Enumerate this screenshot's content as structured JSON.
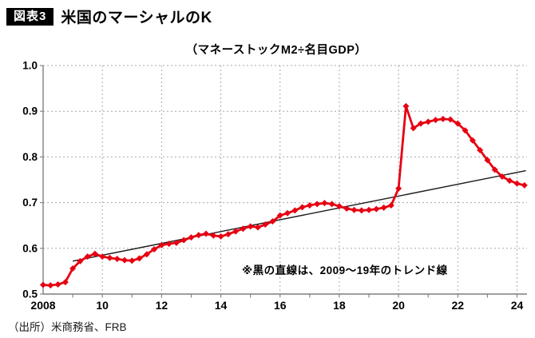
{
  "header": {
    "badge": "図表3",
    "title": "米国のマーシャルのK"
  },
  "chart_data": {
    "type": "line",
    "title": "米国のマーシャルのK",
    "subtitle": "（マネーストックM2÷名目GDP）",
    "series_name": "マーシャルのK（マネーストックM2÷名目GDP）",
    "x_start": 2008,
    "x_step_years": 0.25,
    "frequency": "quarterly",
    "values": [
      0.52,
      0.519,
      0.521,
      0.526,
      0.556,
      0.572,
      0.582,
      0.588,
      0.582,
      0.579,
      0.577,
      0.574,
      0.573,
      0.578,
      0.587,
      0.598,
      0.607,
      0.61,
      0.612,
      0.618,
      0.624,
      0.629,
      0.632,
      0.628,
      0.626,
      0.631,
      0.637,
      0.643,
      0.648,
      0.646,
      0.652,
      0.659,
      0.672,
      0.677,
      0.683,
      0.69,
      0.694,
      0.697,
      0.699,
      0.697,
      0.692,
      0.687,
      0.684,
      0.683,
      0.684,
      0.686,
      0.689,
      0.694,
      0.731,
      0.911,
      0.863,
      0.873,
      0.877,
      0.881,
      0.883,
      0.882,
      0.873,
      0.858,
      0.836,
      0.815,
      0.793,
      0.772,
      0.757,
      0.748,
      0.742,
      0.738
    ],
    "trend": {
      "label": "2009～19年のトレンド線",
      "x1": 2009.0,
      "y1": 0.572,
      "x2": 2024.3,
      "y2": 0.77
    },
    "annotation": "※黒の直線は、2009～19年のトレンド線",
    "xlim": [
      2008,
      2024.4
    ],
    "ylim": [
      0.5,
      1.0
    ],
    "grid": true,
    "x_ticks": [
      {
        "v": 2008,
        "label": "2008"
      },
      {
        "v": 2010,
        "label": "10"
      },
      {
        "v": 2012,
        "label": "12"
      },
      {
        "v": 2014,
        "label": "14"
      },
      {
        "v": 2016,
        "label": "16"
      },
      {
        "v": 2018,
        "label": "18"
      },
      {
        "v": 2020,
        "label": "20"
      },
      {
        "v": 2022,
        "label": "22"
      },
      {
        "v": 2024,
        "label": "24"
      }
    ],
    "y_ticks": [
      {
        "v": 1.0,
        "label": "1.0"
      },
      {
        "v": 0.9,
        "label": "0.9"
      },
      {
        "v": 0.8,
        "label": "0.8"
      },
      {
        "v": 0.7,
        "label": "0.7"
      },
      {
        "v": 0.6,
        "label": "0.6"
      },
      {
        "v": 0.5,
        "label": "0.5"
      }
    ],
    "line_color": "#e60012",
    "trend_color": "#1a1a1a",
    "grid_color": "#aaaaaa",
    "axis_color": "#7f7f7f"
  },
  "footer": {
    "source": "（出所）米商務省、FRB"
  }
}
